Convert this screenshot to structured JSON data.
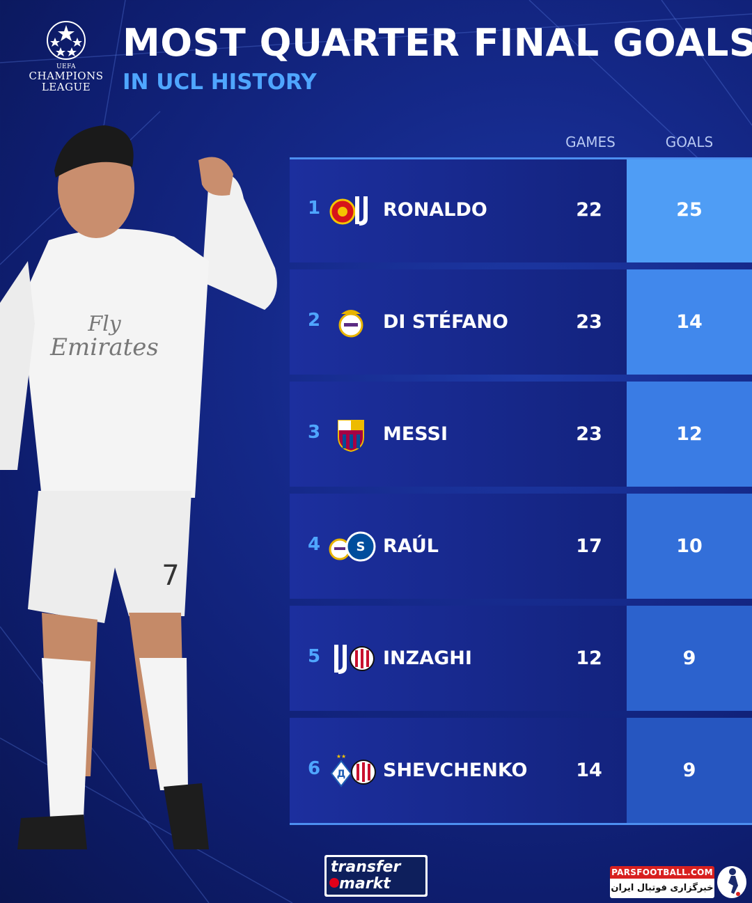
{
  "header": {
    "logo": {
      "line_small": "UEFA",
      "line1": "CHAMPIONS",
      "line2": "LEAGUE"
    },
    "title": "MOST QUARTER FINAL GOALS",
    "subtitle": "IN UCL HISTORY"
  },
  "table": {
    "columns": {
      "games": "GAMES",
      "goals": "GOALS"
    },
    "rows": [
      {
        "rank": "1",
        "name": "RONALDO",
        "games": "22",
        "goals": "25",
        "crests": [
          "man-utd-crest-icon",
          "juventus-crest-icon"
        ],
        "goals_color": "#4f9df5"
      },
      {
        "rank": "2",
        "name": "DI STÉFANO",
        "games": "23",
        "goals": "14",
        "crests": [
          "real-madrid-crest-icon"
        ],
        "goals_color": "#4188ec"
      },
      {
        "rank": "3",
        "name": "MESSI",
        "games": "23",
        "goals": "12",
        "crests": [
          "barcelona-crest-icon"
        ],
        "goals_color": "#3a7ce4"
      },
      {
        "rank": "4",
        "name": "RAÚL",
        "games": "17",
        "goals": "10",
        "crests": [
          "real-madrid-crest-icon",
          "schalke-crest-icon"
        ],
        "goals_color": "#336fd9"
      },
      {
        "rank": "5",
        "name": "INZAGHI",
        "games": "12",
        "goals": "9",
        "crests": [
          "juventus-crest-icon",
          "ac-milan-crest-icon"
        ],
        "goals_color": "#2c62cd"
      },
      {
        "rank": "6",
        "name": "SHEVCHENKO",
        "games": "14",
        "goals": "9",
        "crests": [
          "dynamo-kyiv-crest-icon",
          "ac-milan-crest-icon"
        ],
        "goals_color": "#2656c0"
      }
    ]
  },
  "footer": {
    "transfermarkt": {
      "line1": "transfer",
      "line2": "markt"
    },
    "watermark": {
      "top": "PARSFOOTBALL.COM",
      "bottom": "خبرگزاری فوتبال ایران"
    }
  }
}
